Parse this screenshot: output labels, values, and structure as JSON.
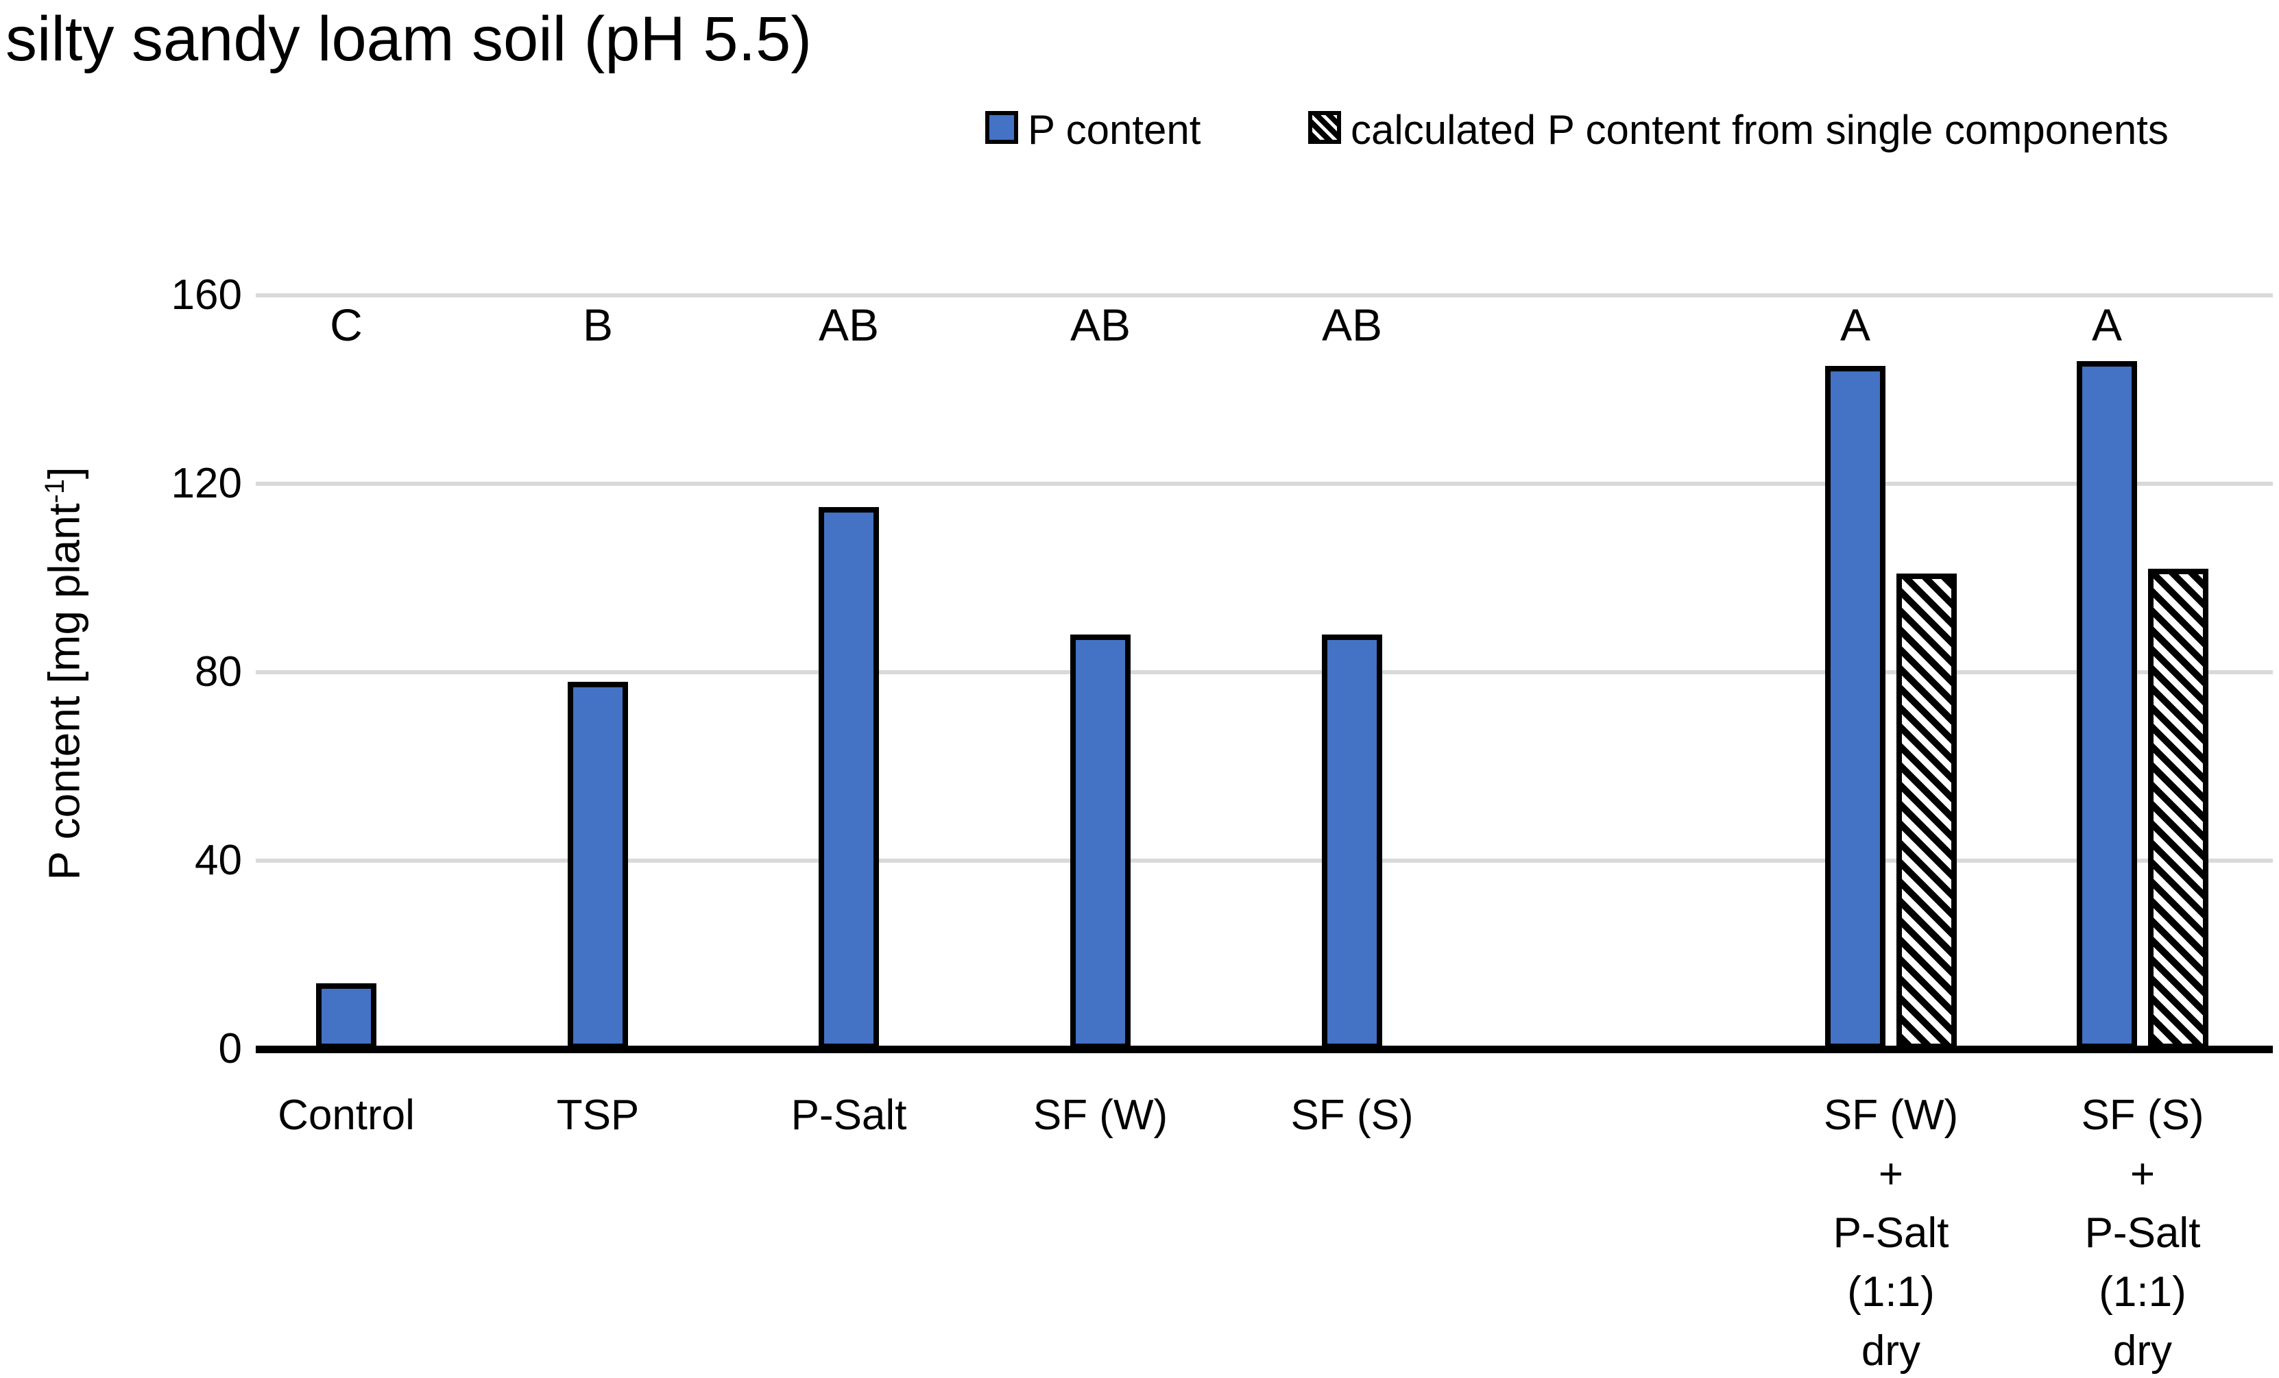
{
  "title": "silty sandy loam soil (pH 5.5)",
  "legend": [
    {
      "label": "P content",
      "swatch": "solid-blue-square"
    },
    {
      "label": "calculated P content from single components",
      "swatch": "black-diagonal-hatch-square"
    }
  ],
  "colors": {
    "bar_fill": "#4472C4",
    "bar_border": "#000000",
    "gridline": "#D9D9D9",
    "text": "#000000"
  },
  "y_axis": {
    "label_pre": "P content [mg plant",
    "label_sup": "-1",
    "label_post": "]",
    "ticks": [
      0,
      40,
      80,
      120,
      160
    ]
  },
  "chart_data": {
    "type": "bar",
    "title": "silty sandy loam soil (pH 5.5)",
    "ylabel": "P content [mg plant -1]",
    "xlabel": "",
    "ylim": [
      0,
      160
    ],
    "gridlines_at": [
      40,
      80,
      120,
      160
    ],
    "legend_position": "top",
    "categories": [
      "Control",
      "TSP",
      "P-Salt",
      "SF (W)",
      "SF (S)",
      "SF (W)\n+\nP-Salt\n(1:1)\ndry",
      "SF (S)\n+\nP-Salt\n(1:1)\ndry"
    ],
    "significance_letters": [
      "C",
      "B",
      "AB",
      "AB",
      "AB",
      "A",
      "A"
    ],
    "series": [
      {
        "name": "P content",
        "style": "solid",
        "values": [
          14,
          78,
          115,
          88,
          88,
          145,
          146
        ]
      },
      {
        "name": "calculated P content from single components",
        "style": "hatch",
        "values": [
          null,
          null,
          null,
          null,
          null,
          101,
          102
        ]
      }
    ]
  }
}
